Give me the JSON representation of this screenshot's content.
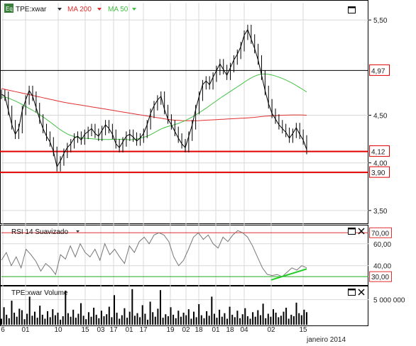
{
  "header": {
    "badge": "Eq",
    "ticker_label": "TPE:xwar",
    "ma200_label": "MA 200",
    "ma50_label": "MA 50",
    "rsi_label": "RSI 14 Suavizado",
    "volume_label": "TPE:xwar Volume"
  },
  "colors": {
    "price": "#000000",
    "ma200": "#e03030",
    "ma50": "#44c044",
    "support": "#e00000",
    "rsi_line": "#777777",
    "rsi_upper": "#e03030",
    "rsi_lower": "#22aa22",
    "rsi_trend": "#22cc22",
    "volume": "#000000",
    "grid": "#d8d8d8"
  },
  "chart_data": [
    {
      "type": "line",
      "subtype": "ohlc-price",
      "series": [
        {
          "name": "TPE:xwar",
          "values": [
            4.72,
            4.7,
            4.55,
            4.4,
            4.3,
            4.36,
            4.55,
            4.66,
            4.76,
            4.7,
            4.58,
            4.46,
            4.36,
            4.28,
            4.22,
            4.12,
            3.96,
            4.02,
            4.1,
            4.16,
            4.2,
            4.26,
            4.28,
            4.24,
            4.3,
            4.33,
            4.36,
            4.31,
            4.28,
            4.34,
            4.4,
            4.36,
            4.3,
            4.2,
            4.16,
            4.22,
            4.28,
            4.3,
            4.27,
            4.23,
            4.26,
            4.31,
            4.4,
            4.52,
            4.6,
            4.66,
            4.7,
            4.56,
            4.46,
            4.4,
            4.33,
            4.26,
            4.2,
            4.16,
            4.28,
            4.4,
            4.56,
            4.7,
            4.82,
            4.86,
            4.82,
            4.9,
            4.97,
            5.04,
            4.98,
            4.92,
            5.0,
            5.08,
            5.14,
            5.22,
            5.34,
            5.4,
            5.3,
            5.2,
            5.08,
            4.92,
            4.76,
            4.62,
            4.52,
            4.46,
            4.4,
            4.36,
            4.32,
            4.26,
            4.31,
            4.37,
            4.3,
            4.24,
            4.14
          ]
        },
        {
          "name": "MA 200",
          "values": [
            4.78,
            4.772,
            4.764,
            4.756,
            4.748,
            4.74,
            4.732,
            4.724,
            4.716,
            4.708,
            4.7,
            4.692,
            4.684,
            4.676,
            4.668,
            4.66,
            4.652,
            4.644,
            4.636,
            4.63,
            4.624,
            4.618,
            4.612,
            4.606,
            4.6,
            4.594,
            4.588,
            4.582,
            4.576,
            4.57,
            4.564,
            4.558,
            4.552,
            4.546,
            4.54,
            4.534,
            4.528,
            4.522,
            4.516,
            4.51,
            4.504,
            4.498,
            4.492,
            4.486,
            4.48,
            4.474,
            4.468,
            4.462,
            4.456,
            4.452,
            4.448,
            4.446,
            4.444,
            4.443,
            4.442,
            4.442,
            4.443,
            4.444,
            4.446,
            4.448,
            4.45,
            4.452,
            4.454,
            4.456,
            4.458,
            4.46,
            4.462,
            4.464,
            4.466,
            4.468,
            4.47,
            4.472,
            4.475,
            4.478,
            4.482,
            4.486,
            4.49,
            4.492,
            4.494,
            4.496,
            4.498,
            4.5,
            4.501,
            4.502,
            4.503,
            4.503,
            4.503,
            4.502,
            4.5
          ]
        },
        {
          "name": "MA 50",
          "values": [
            4.69,
            4.69,
            4.68,
            4.665,
            4.65,
            4.632,
            4.612,
            4.592,
            4.572,
            4.552,
            4.53,
            4.506,
            4.482,
            4.456,
            4.43,
            4.402,
            4.374,
            4.348,
            4.324,
            4.304,
            4.288,
            4.276,
            4.268,
            4.262,
            4.258,
            4.256,
            4.254,
            4.25,
            4.247,
            4.245,
            4.245,
            4.246,
            4.247,
            4.248,
            4.248,
            4.247,
            4.245,
            4.243,
            4.244,
            4.25,
            4.258,
            4.268,
            4.28,
            4.296,
            4.316,
            4.336,
            4.356,
            4.37,
            4.382,
            4.392,
            4.402,
            4.414,
            4.428,
            4.444,
            4.462,
            4.482,
            4.504,
            4.526,
            4.55,
            4.574,
            4.6,
            4.626,
            4.652,
            4.678,
            4.702,
            4.726,
            4.75,
            4.774,
            4.798,
            4.822,
            4.846,
            4.87,
            4.892,
            4.91,
            4.924,
            4.932,
            4.934,
            4.93,
            4.922,
            4.912,
            4.9,
            4.886,
            4.87,
            4.852,
            4.834,
            4.812,
            4.79,
            4.768,
            4.744
          ]
        }
      ],
      "x_tick_labels": [
        "6",
        "01",
        "10",
        "15",
        "03",
        "17",
        "01",
        "17",
        "19",
        "02",
        "18",
        "01",
        "18",
        "04",
        "02",
        "15"
      ],
      "x_axis_label": "janeiro 2014",
      "y_tick_labels": [
        "5,50",
        "4,50",
        "4,00",
        "3,50"
      ],
      "price_labels": [
        {
          "text": "4,97",
          "value": 4.97
        },
        {
          "text": "4,12",
          "value": 4.12
        },
        {
          "text": "3,90",
          "value": 3.9
        }
      ],
      "support_lines": [
        4.97,
        4.12,
        3.9
      ],
      "ylim": [
        3.38,
        5.68
      ],
      "grid": true
    },
    {
      "type": "line",
      "subtype": "rsi",
      "series": [
        {
          "name": "RSI 14 Suavizado",
          "values": [
            45,
            52,
            40,
            48,
            38,
            55,
            50,
            44,
            35,
            42,
            38,
            32,
            50,
            46,
            58,
            48,
            60,
            52,
            48,
            55,
            45,
            60,
            50,
            55,
            48,
            42,
            58,
            52,
            62,
            66,
            60,
            68,
            70,
            68,
            62,
            48,
            40,
            45,
            55,
            66,
            70,
            64,
            68,
            60,
            56,
            66,
            62,
            68,
            72,
            70,
            66,
            58,
            48,
            38,
            32,
            31,
            32,
            30,
            34,
            38,
            36,
            40,
            38
          ]
        },
        {
          "name": "RSI trend",
          "values": [
            27,
            37
          ]
        }
      ],
      "y_tick_labels": [
        "70,00",
        "60,00",
        "40,00",
        "30,00"
      ],
      "levels": [
        70,
        30
      ],
      "ylim": [
        23,
        76
      ]
    },
    {
      "type": "bar",
      "subtype": "volume",
      "series": [
        {
          "name": "TPE:xwar Volume",
          "values": [
            1.2,
            3.5,
            2.0,
            1.3,
            4.8,
            2.4,
            1.6,
            3.2,
            2.9,
            1.1,
            2.2,
            5.6,
            1.8,
            2.6,
            1.4,
            3.8,
            2.0,
            1.2,
            2.7,
            1.5,
            3.1,
            1.9,
            2.4,
            1.0,
            1.7,
            6.8,
            2.3,
            1.6,
            3.0,
            1.4,
            2.2,
            4.3,
            1.8,
            1.1,
            2.5,
            1.6,
            3.4,
            2.0,
            1.3,
            2.8,
            1.7,
            2.1,
            3.6,
            1.5,
            5.9,
            2.4,
            1.2,
            1.9,
            3.3,
            1.4,
            2.6,
            7.1,
            1.8,
            2.3,
            1.5,
            3.9,
            2.2,
            1.0,
            4.6,
            2.5,
            1.6,
            3.2,
            6.9,
            1.4,
            2.1,
            1.7,
            3.5,
            2.0,
            1.3,
            2.8,
            1.6,
            2.4,
            1.9,
            3.1,
            1.2,
            2.6,
            1.5,
            4.1,
            1.9,
            1.3,
            2.7,
            1.8,
            5.6,
            2.2,
            1.4,
            3.0,
            1.6,
            2.3,
            1.2,
            3.6,
            2.0,
            1.5,
            2.8,
            1.3,
            2.1,
            3.3,
            1.7,
            1.2,
            2.5,
            1.6,
            2.9,
            1.9,
            4.2,
            1.3,
            2.2,
            1.6,
            3.1,
            2.4,
            1.5,
            1.8,
            2.6,
            3.4,
            1.2,
            2.0,
            1.7,
            4.4,
            2.3,
            1.9,
            3.0,
            2.5
          ]
        }
      ],
      "y_tick_labels": [
        "5 000 000"
      ],
      "ylim": [
        0,
        7.5
      ],
      "gap_after_index": 70
    }
  ]
}
